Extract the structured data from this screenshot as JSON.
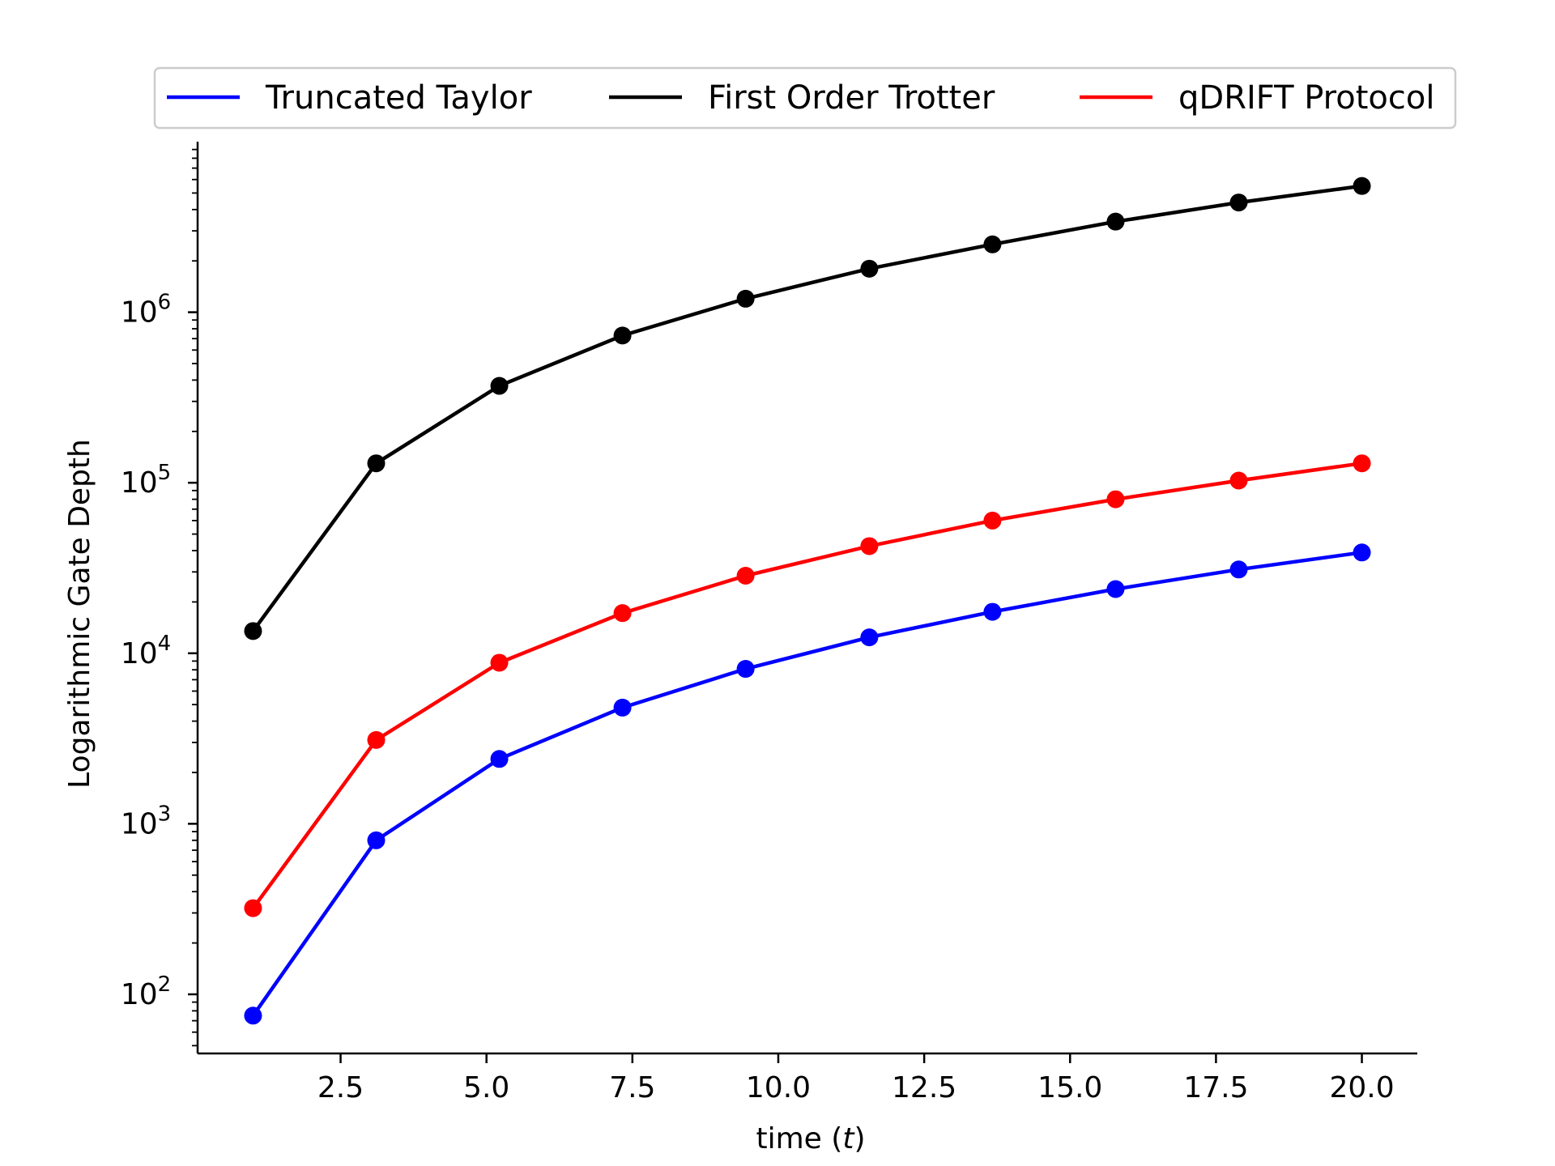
{
  "chart_data": {
    "type": "line",
    "xlabel": "time (t)",
    "xlabel_prefix": "time (",
    "xlabel_var": "t",
    "xlabel_suffix": ")",
    "ylabel": "Logarithmic Gate Depth",
    "yscale": "log",
    "xlim": [
      0.05,
      20.95
    ],
    "ylim": [
      45,
      10000000
    ],
    "x_ticks": [
      2.5,
      5.0,
      7.5,
      10.0,
      12.5,
      15.0,
      17.5,
      20.0
    ],
    "x_tick_labels": [
      "2.5",
      "5.0",
      "7.5",
      "10.0",
      "12.5",
      "15.0",
      "17.5",
      "20.0"
    ],
    "y_ticks": [
      100,
      1000,
      10000,
      100000,
      1000000
    ],
    "y_tick_labels": [
      {
        "base": "10",
        "exp": "2"
      },
      {
        "base": "10",
        "exp": "3"
      },
      {
        "base": "10",
        "exp": "4"
      },
      {
        "base": "10",
        "exp": "5"
      },
      {
        "base": "10",
        "exp": "6"
      }
    ],
    "grid": false,
    "legend_position": "top-center",
    "x": [
      1.0,
      3.11,
      5.22,
      7.33,
      9.44,
      11.56,
      13.67,
      15.78,
      17.89,
      20.0
    ],
    "series": [
      {
        "name": "Truncated Taylor",
        "color": "#0000ff",
        "values": [
          75,
          800,
          2400,
          4800,
          8100,
          12400,
          17500,
          23800,
          31000,
          39000
        ]
      },
      {
        "name": "First Order Trotter",
        "color": "#000000",
        "values": [
          13500,
          130000,
          370000,
          730000,
          1200000,
          1800000,
          2500000,
          3400000,
          4400000,
          5500000
        ]
      },
      {
        "name": "qDRIFT Protocol",
        "color": "#ff0000",
        "values": [
          320,
          3100,
          8800,
          17200,
          28500,
          42500,
          60000,
          80000,
          103000,
          130000
        ]
      }
    ]
  }
}
